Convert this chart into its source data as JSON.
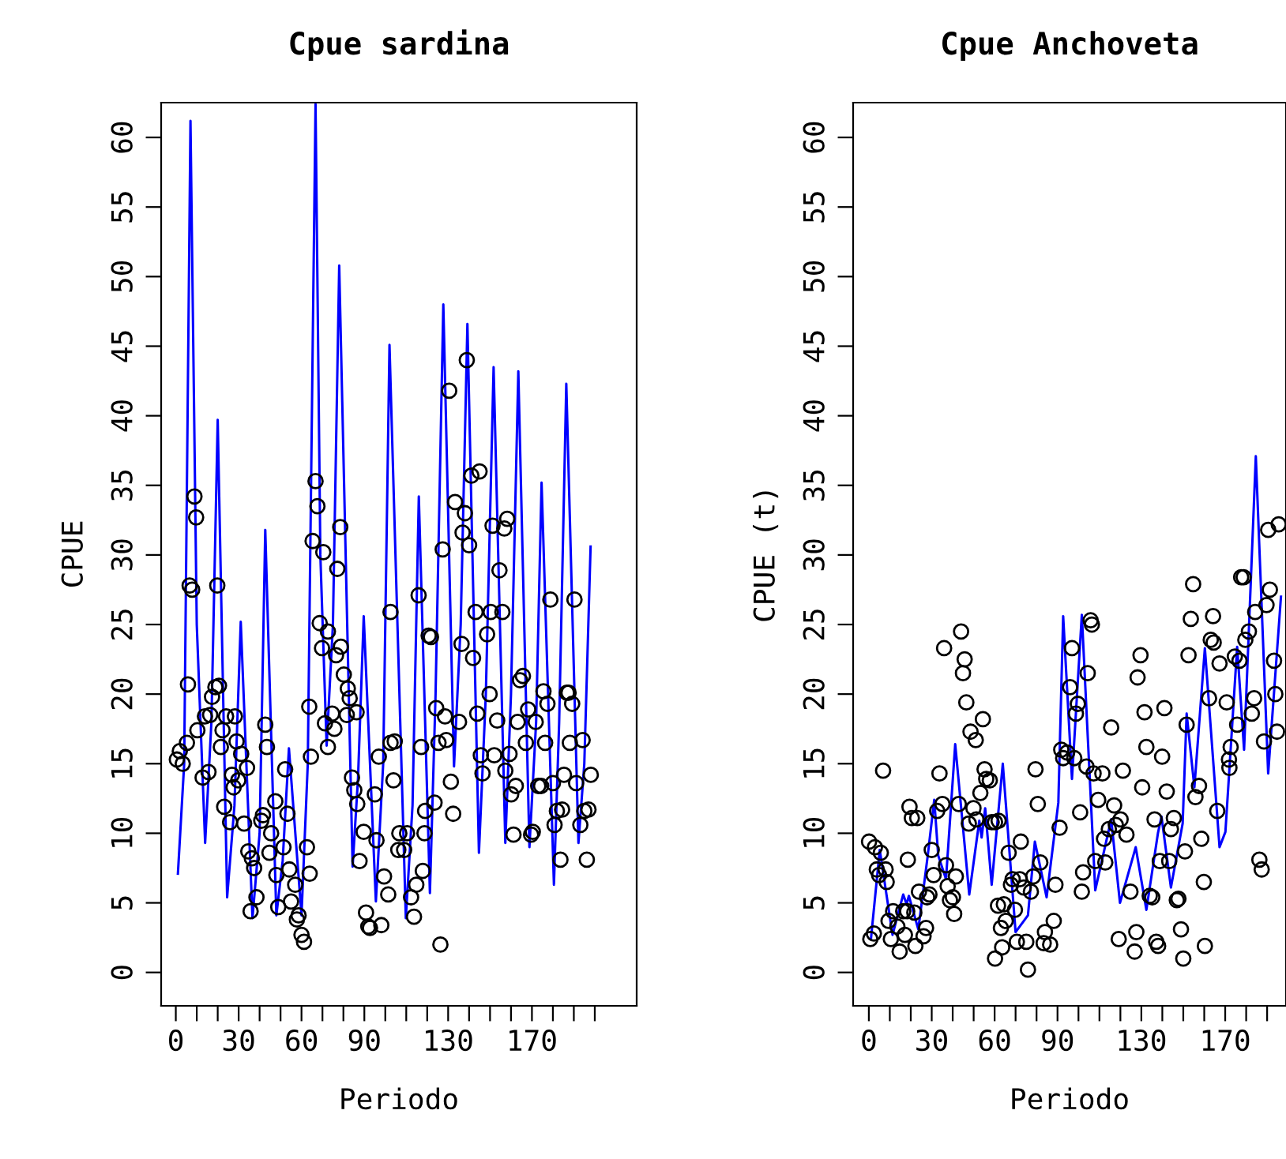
{
  "chart_data": [
    {
      "type": "scatter",
      "title": "Cpue sardina",
      "xlabel": "Periodo",
      "ylabel": "CPUE",
      "xlim": [
        -7,
        220
      ],
      "ylim": [
        -2.4,
        62.5
      ],
      "xticks": [
        0,
        {
          "value": 10,
          "label": null
        },
        {
          "value": 20,
          "label": null
        },
        30,
        {
          "value": 40,
          "label": null
        },
        {
          "value": 50,
          "label": null
        },
        60,
        {
          "value": 70,
          "label": null
        },
        {
          "value": 80,
          "label": null
        },
        90,
        {
          "value": 100,
          "label": null
        },
        {
          "value": 110,
          "label": null
        },
        {
          "value": 120,
          "label": null
        },
        130,
        {
          "value": 140,
          "label": null
        },
        {
          "value": 150,
          "label": null
        },
        {
          "value": 160,
          "label": null
        },
        170,
        {
          "value": 180,
          "label": null
        },
        {
          "value": 190,
          "label": null
        },
        {
          "value": 200,
          "label": null
        }
      ],
      "yticks": [
        0,
        5,
        10,
        15,
        20,
        25,
        30,
        35,
        40,
        45,
        50,
        55,
        60
      ],
      "grid": false,
      "legend": false,
      "series": [
        {
          "color": "#000000",
          "marker": "circle",
          "x": [
            0.5,
            1.9,
            3.3,
            5.3,
            5.8,
            6.6,
            7.8,
            8.9,
            9.7,
            10.3,
            12.8,
            13.9,
            15.6,
            16.4,
            17.3,
            18.9,
            19.8,
            20.6,
            21.5,
            22.3,
            23.1,
            24.0,
            25.9,
            26.8,
            27.6,
            28.2,
            29.0,
            29.8,
            31.2,
            32.6,
            34.0,
            34.6,
            36.3,
            37.4,
            38.5,
            35.7,
            40.8,
            41.6,
            42.7,
            43.5,
            44.7,
            45.5,
            47.5,
            48.0,
            48.9,
            51.4,
            52.2,
            53.3,
            54.2,
            55.0,
            57.0,
            57.8,
            58.6,
            60.0,
            61.2,
            62.6,
            63.9,
            64.5,
            63.7,
            65.3,
            66.7,
            67.6,
            70.4,
            68.7,
            69.8,
            72.6,
            71.2,
            72.6,
            74.6,
            75.7,
            76.5,
            77.1,
            78.5,
            78.8,
            80.2,
            82.1,
            83.0,
            81.6,
            86.3,
            84.1,
            85.2,
            86.6,
            89.7,
            87.7,
            90.8,
            91.9,
            92.7,
            95.0,
            95.8,
            96.9,
            98.1,
            99.4,
            101.4,
            102.5,
            102.5,
            103.9,
            104.5,
            106.7,
            106.2,
            109.0,
            110.4,
            112.3,
            113.7,
            114.8,
            115.9,
            117.1,
            117.9,
            119.0,
            118.7,
            120.7,
            121.8,
            123.5,
            124.3,
            125.4,
            126.3,
            127.4,
            128.5,
            129.1,
            130.5,
            131.3,
            132.4,
            133.3,
            135.2,
            136.4,
            136.9,
            138.0,
            138.9,
            140.0,
            141.1,
            141.9,
            143.1,
            143.9,
            145.0,
            145.6,
            146.4,
            148.6,
            149.8,
            150.3,
            151.2,
            152.0,
            153.4,
            154.5,
            155.9,
            156.8,
            158.2,
            157.3,
            159.3,
            160.1,
            161.2,
            162.3,
            163.2,
            164.3,
            165.7,
            167.1,
            168.2,
            169.6,
            170.4,
            171.8,
            173.0,
            174.4,
            175.5,
            176.3,
            177.4,
            178.8,
            180.0,
            180.8,
            181.9,
            183.6,
            184.4,
            185.3,
            186.7,
            187.5,
            188.1,
            189.2,
            190.3,
            191.1,
            193.1,
            194.2,
            195.0,
            196.2,
            197.0,
            198.1
          ],
          "values": [
            15.3,
            15.9,
            15.0,
            16.5,
            20.7,
            27.8,
            27.5,
            34.2,
            32.7,
            17.4,
            14.0,
            18.4,
            14.4,
            18.5,
            19.8,
            20.5,
            27.8,
            20.6,
            16.2,
            17.4,
            11.9,
            18.4,
            10.8,
            14.2,
            13.3,
            18.4,
            16.6,
            13.8,
            15.7,
            10.7,
            14.7,
            8.7,
            8.2,
            7.5,
            5.4,
            4.4,
            10.9,
            11.3,
            17.8,
            16.2,
            8.6,
            10.0,
            12.3,
            7.0,
            4.7,
            9.0,
            14.6,
            11.4,
            7.4,
            5.1,
            6.3,
            3.8,
            4.1,
            2.7,
            2.2,
            9.0,
            7.1,
            15.5,
            19.1,
            31.0,
            35.3,
            33.5,
            30.2,
            25.1,
            23.3,
            24.5,
            17.9,
            16.2,
            18.6,
            17.5,
            22.8,
            29.0,
            32.0,
            23.4,
            21.4,
            20.4,
            19.7,
            18.5,
            18.7,
            14.0,
            13.1,
            12.1,
            10.1,
            8.0,
            4.3,
            3.3,
            3.2,
            12.8,
            9.5,
            15.5,
            3.4,
            6.9,
            5.6,
            25.9,
            16.5,
            13.8,
            16.6,
            10.0,
            8.8,
            8.8,
            10.0,
            5.4,
            4.0,
            6.3,
            27.1,
            16.2,
            7.3,
            11.6,
            10.0,
            24.2,
            24.1,
            12.2,
            19.0,
            16.5,
            2.0,
            30.4,
            18.4,
            16.7,
            41.8,
            13.7,
            11.4,
            33.8,
            18.0,
            23.6,
            31.6,
            33.0,
            44.0,
            30.7,
            35.7,
            22.6,
            25.9,
            18.6,
            36.0,
            15.6,
            14.3,
            24.3,
            20.0,
            25.9,
            32.1,
            15.6,
            18.1,
            28.9,
            25.9,
            31.9,
            32.6,
            14.5,
            15.7,
            12.8,
            9.9,
            13.4,
            18.0,
            21.0,
            21.3,
            16.5,
            18.9,
            9.9,
            10.1,
            18.0,
            13.4,
            13.4,
            20.2,
            16.5,
            19.3,
            26.8,
            13.6,
            10.6,
            11.6,
            8.1,
            11.7,
            14.2,
            20.1,
            20.1,
            16.5,
            19.3,
            26.8,
            13.6,
            10.6,
            16.7,
            11.6,
            8.1,
            11.7,
            14.2
          ]
        },
        {
          "type": "line",
          "color": "#0000ff",
          "marker": "none",
          "line_style": "solid",
          "x": [
            1,
            4,
            7,
            10,
            14,
            17,
            20,
            24.5,
            28,
            31,
            36.6,
            40,
            42.7,
            48,
            51,
            54,
            60,
            63,
            66.7,
            69,
            72,
            75,
            78,
            84.4,
            87,
            89.7,
            95.5,
            99,
            102,
            109.8,
            113,
            116,
            121.3,
            124,
            127.7,
            132.8,
            136,
            139.2,
            144.7,
            148,
            151.7,
            157.3,
            160,
            163.5,
            168.8,
            172,
            174.6,
            180.5,
            183,
            186.4,
            192.2,
            195,
            198
          ],
          "values": [
            7.1,
            15.0,
            61.2,
            25.0,
            9.3,
            18.0,
            39.7,
            5.4,
            12.0,
            25.2,
            3.9,
            10.0,
            31.8,
            4.1,
            8.0,
            16.1,
            4.1,
            15.0,
            62.4,
            30.0,
            16.3,
            25.0,
            50.8,
            7.6,
            14.0,
            25.6,
            5.1,
            15.0,
            45.1,
            3.9,
            12.0,
            34.2,
            5.7,
            20.0,
            48.0,
            14.8,
            25.0,
            46.6,
            8.6,
            20.0,
            43.5,
            9.3,
            20.0,
            43.2,
            9.0,
            18.0,
            35.2,
            6.3,
            18.0,
            42.3,
            9.3,
            15.0,
            30.6
          ]
        }
      ]
    },
    {
      "type": "scatter",
      "title": "Cpue Anchoveta",
      "xlabel": "Periodo",
      "ylabel": "CPUE (t)",
      "xlim": [
        -7.5,
        199
      ],
      "ylim": [
        -2.4,
        62.5
      ],
      "xticks": [
        0,
        {
          "value": 10,
          "label": null
        },
        {
          "value": 20,
          "label": null
        },
        30,
        {
          "value": 40,
          "label": null
        },
        {
          "value": 50,
          "label": null
        },
        60,
        {
          "value": 70,
          "label": null
        },
        {
          "value": 80,
          "label": null
        },
        90,
        {
          "value": 100,
          "label": null
        },
        {
          "value": 110,
          "label": null
        },
        {
          "value": 120,
          "label": null
        },
        130,
        {
          "value": 140,
          "label": null
        },
        {
          "value": 150,
          "label": null
        },
        {
          "value": 160,
          "label": null
        },
        170,
        {
          "value": 180,
          "label": null
        },
        {
          "value": 190,
          "label": null
        }
      ],
      "yticks": [
        0,
        5,
        10,
        15,
        20,
        25,
        30,
        35,
        40,
        45,
        50,
        55,
        60
      ],
      "grid": false,
      "legend": false,
      "series": [
        {
          "color": "#000000",
          "marker": "circle",
          "x": [
            0.7,
            2.4,
            0.1,
            2.9,
            5.7,
            3.8,
            4.9,
            8.0,
            8.5,
            6.8,
            9.4,
            10.5,
            11.6,
            13.6,
            14.7,
            16.4,
            17.2,
            18.3,
            18.6,
            19.4,
            20.5,
            21.7,
            23.1,
            23.9,
            22.2,
            26.1,
            27.3,
            27.8,
            28.9,
            30.0,
            30.9,
            32.6,
            33.7,
            35.1,
            35.9,
            36.8,
            37.6,
            38.7,
            40.1,
            40.7,
            41.5,
            42.9,
            44.0,
            44.9,
            45.7,
            46.5,
            47.7,
            48.5,
            49.9,
            51.0,
            51.3,
            53.2,
            54.4,
            55.2,
            56.0,
            57.7,
            58.6,
            60.2,
            61.9,
            60.2,
            61.6,
            63.0,
            63.6,
            64.4,
            65.3,
            66.7,
            67.8,
            68.6,
            69.7,
            70.6,
            72.5,
            72.0,
            73.9,
            75.1,
            75.9,
            77.3,
            78.4,
            79.5,
            80.6,
            81.8,
            83.4,
            84.0,
            86.5,
            88.2,
            89.0,
            91.0,
            91.8,
            92.7,
            94.6,
            96.0,
            96.9,
            98.0,
            98.8,
            99.7,
            100.8,
            101.6,
            102.2,
            103.8,
            104.4,
            105.8,
            106.4,
            107.2,
            108.0,
            109.4,
            111.4,
            112.2,
            112.8,
            114.5,
            115.6,
            117.0,
            117.8,
            119.2,
            120.1,
            121.2,
            122.9,
            124.8,
            127.6,
            126.8,
            128.2,
            129.6,
            130.4,
            131.5,
            132.4,
            134.0,
            135.2,
            136.3,
            137.1,
            138.0,
            138.8,
            139.9,
            141.0,
            142.1,
            143.3,
            144.1,
            145.5,
            146.9,
            147.7,
            148.9,
            150.0,
            150.8,
            151.6,
            152.5,
            153.6,
            154.7,
            155.8,
            157.5,
            158.6,
            159.8,
            160.3,
            162.3,
            163.1,
            164.5,
            164.2,
            166.2,
            167.3,
            170.7,
            171.8,
            172.6,
            172.0,
            174.6,
            175.7,
            176.8,
            177.6,
            178.8,
            179.6,
            181.3,
            182.7,
            183.8,
            184.3,
            186.3,
            187.4,
            188.5,
            189.7,
            190.5,
            191.3,
            193.3,
            193.9,
            194.7,
            195.5
          ],
          "values": [
            2.4,
            2.8,
            9.4,
            9.0,
            8.6,
            7.4,
            7.0,
            7.4,
            6.5,
            14.5,
            3.7,
            2.4,
            4.4,
            3.3,
            1.5,
            4.4,
            2.7,
            4.4,
            8.1,
            11.9,
            11.1,
            4.3,
            11.1,
            5.8,
            1.9,
            2.6,
            3.2,
            5.4,
            5.6,
            8.8,
            7.0,
            11.6,
            14.3,
            12.1,
            23.3,
            7.7,
            6.2,
            5.2,
            5.4,
            4.2,
            6.9,
            12.1,
            24.5,
            21.5,
            22.5,
            19.4,
            10.7,
            17.3,
            11.8,
            16.7,
            11.0,
            12.9,
            18.2,
            14.6,
            13.9,
            13.8,
            10.8,
            10.8,
            10.9,
            1.0,
            4.8,
            3.2,
            1.8,
            4.9,
            3.7,
            8.6,
            6.3,
            6.7,
            4.5,
            2.2,
            9.4,
            6.7,
            6.1,
            2.2,
            0.2,
            5.8,
            6.9,
            14.6,
            12.1,
            7.9,
            2.1,
            2.9,
            2.0,
            3.7,
            6.3,
            10.4,
            16.0,
            15.4,
            15.8,
            20.5,
            23.3,
            15.4,
            18.6,
            19.3,
            11.5,
            5.8,
            7.2,
            14.8,
            21.5,
            25.3,
            25.0,
            14.3,
            8.0,
            12.4,
            14.3,
            9.6,
            7.9,
            10.3,
            17.6,
            12.0,
            10.6,
            2.4,
            11.0,
            14.5,
            9.9,
            5.8,
            2.9,
            1.5,
            21.2,
            22.8,
            13.3,
            18.7,
            16.2,
            5.5,
            5.4,
            11.0,
            2.2,
            1.9,
            8.0,
            15.5,
            19.0,
            13.0,
            8.0,
            10.3,
            11.1,
            5.2,
            5.3,
            3.1,
            1.0,
            8.7,
            17.8,
            22.8,
            25.4,
            27.9,
            12.6,
            13.4,
            9.6,
            6.5,
            1.9,
            19.7,
            23.9,
            23.7,
            25.6,
            11.6,
            22.2,
            19.4,
            15.3,
            16.2,
            14.7,
            22.7,
            17.8,
            22.4,
            28.4,
            28.4,
            23.9,
            24.5,
            18.6,
            19.7,
            25.9,
            8.1,
            7.4,
            16.6,
            26.4,
            31.8,
            27.5,
            22.4,
            20.0,
            17.3,
            32.2
          ]
        },
        {
          "type": "line",
          "color": "#0000ff",
          "marker": "none",
          "line_style": "solid",
          "x": [
            1.0,
            5.2,
            11.3,
            16.4,
            18.0,
            19.1,
            23.6,
            28.1,
            31.2,
            33.1,
            36.8,
            41.2,
            47.9,
            52.7,
            53.8,
            55.5,
            58.6,
            63.9,
            70.0,
            75.9,
            79.2,
            84.8,
            90.4,
            92.7,
            96.9,
            101.6,
            108.0,
            115.6,
            119.8,
            127.3,
            132.4,
            137.9,
            139.6,
            144.1,
            149.7,
            151.6,
            155.3,
            160.3,
            167.3,
            170.1,
            175.7,
            179.0,
            184.6,
            190.5,
            196.6
          ],
          "values": [
            2.4,
            8.8,
            2.7,
            5.6,
            4.9,
            5.5,
            3.1,
            8.4,
            12.4,
            8.4,
            6.7,
            16.4,
            5.6,
            10.9,
            9.7,
            11.8,
            6.3,
            15.0,
            2.9,
            4.1,
            9.4,
            5.4,
            12.2,
            25.6,
            13.9,
            25.7,
            5.9,
            11.0,
            5.0,
            9.0,
            4.5,
            10.0,
            11.2,
            6.1,
            10.7,
            18.6,
            13.3,
            23.3,
            9.0,
            10.1,
            23.4,
            16.0,
            37.1,
            14.3,
            27.0
          ]
        }
      ]
    }
  ]
}
